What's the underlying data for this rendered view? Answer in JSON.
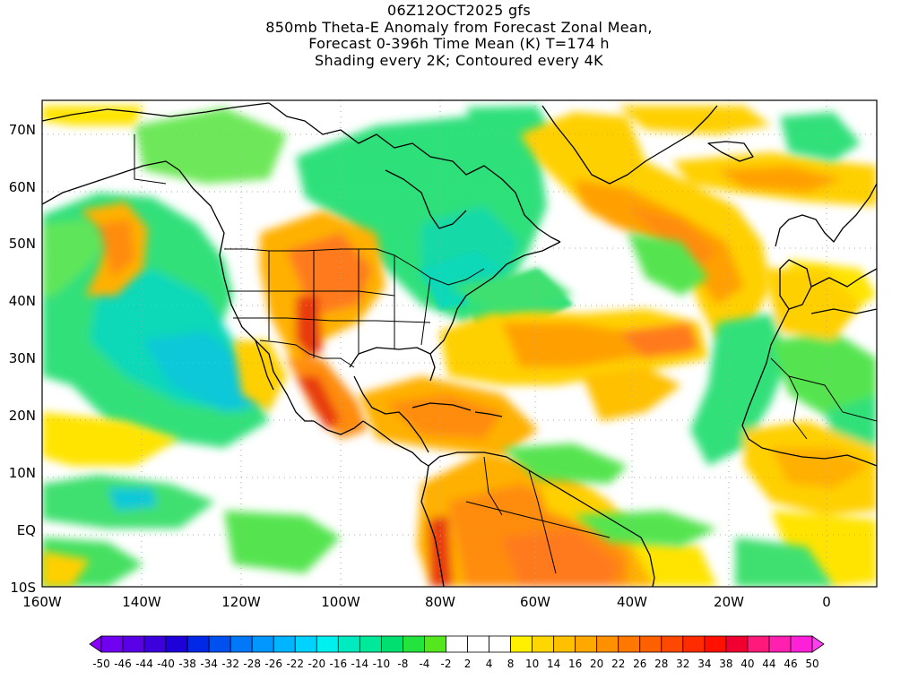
{
  "title_lines": [
    "06Z12OCT2025 gfs",
    "850mb Theta-E Anomaly from Forecast Zonal Mean,",
    "Forecast 0-396h Time Mean (K) T=174 h",
    "Shading every 2K; Contoured every 4K"
  ],
  "axes": {
    "lon_labels": [
      "160W",
      "140W",
      "120W",
      "100W",
      "80W",
      "60W",
      "40W",
      "20W",
      "0"
    ],
    "lat_labels": [
      "70N",
      "60N",
      "50N",
      "40N",
      "30N",
      "20N",
      "10N",
      "EQ",
      "10S"
    ]
  },
  "colorbar": {
    "labels": [
      "-50",
      "-46",
      "-44",
      "-40",
      "-38",
      "-34",
      "-32",
      "-28",
      "-26",
      "-22",
      "-20",
      "-16",
      "-14",
      "-10",
      "-8",
      "-4",
      "-2",
      "2",
      "4",
      "8",
      "10",
      "14",
      "16",
      "20",
      "22",
      "26",
      "28",
      "32",
      "34",
      "38",
      "40",
      "44",
      "46",
      "50"
    ],
    "colors": [
      "#8a00ff",
      "#7000f0",
      "#5a00e6",
      "#3c00dc",
      "#1e00d8",
      "#0028e6",
      "#0050f0",
      "#0078f8",
      "#0096ff",
      "#00b4ff",
      "#00d2ff",
      "#00f0f0",
      "#00eac0",
      "#00e89a",
      "#00e070",
      "#22e43c",
      "#55e620",
      "#ffffff",
      "#ffffff",
      "#ffffff",
      "#fff000",
      "#ffd700",
      "#ffc000",
      "#ffa800",
      "#ff9000",
      "#ff7800",
      "#ff6000",
      "#ff4800",
      "#ff2c00",
      "#ff1000",
      "#f00030",
      "#ff1a7a",
      "#ff20b0",
      "#ff20d8",
      "#ff40f0"
    ]
  },
  "legend_colors": {
    "cool_strong": "#00d8d0",
    "cool": "#20e080",
    "warm_weak": "#ffe400",
    "warm": "#ffb000",
    "warm_strong": "#ff7a1a",
    "hot": "#e83a10"
  }
}
